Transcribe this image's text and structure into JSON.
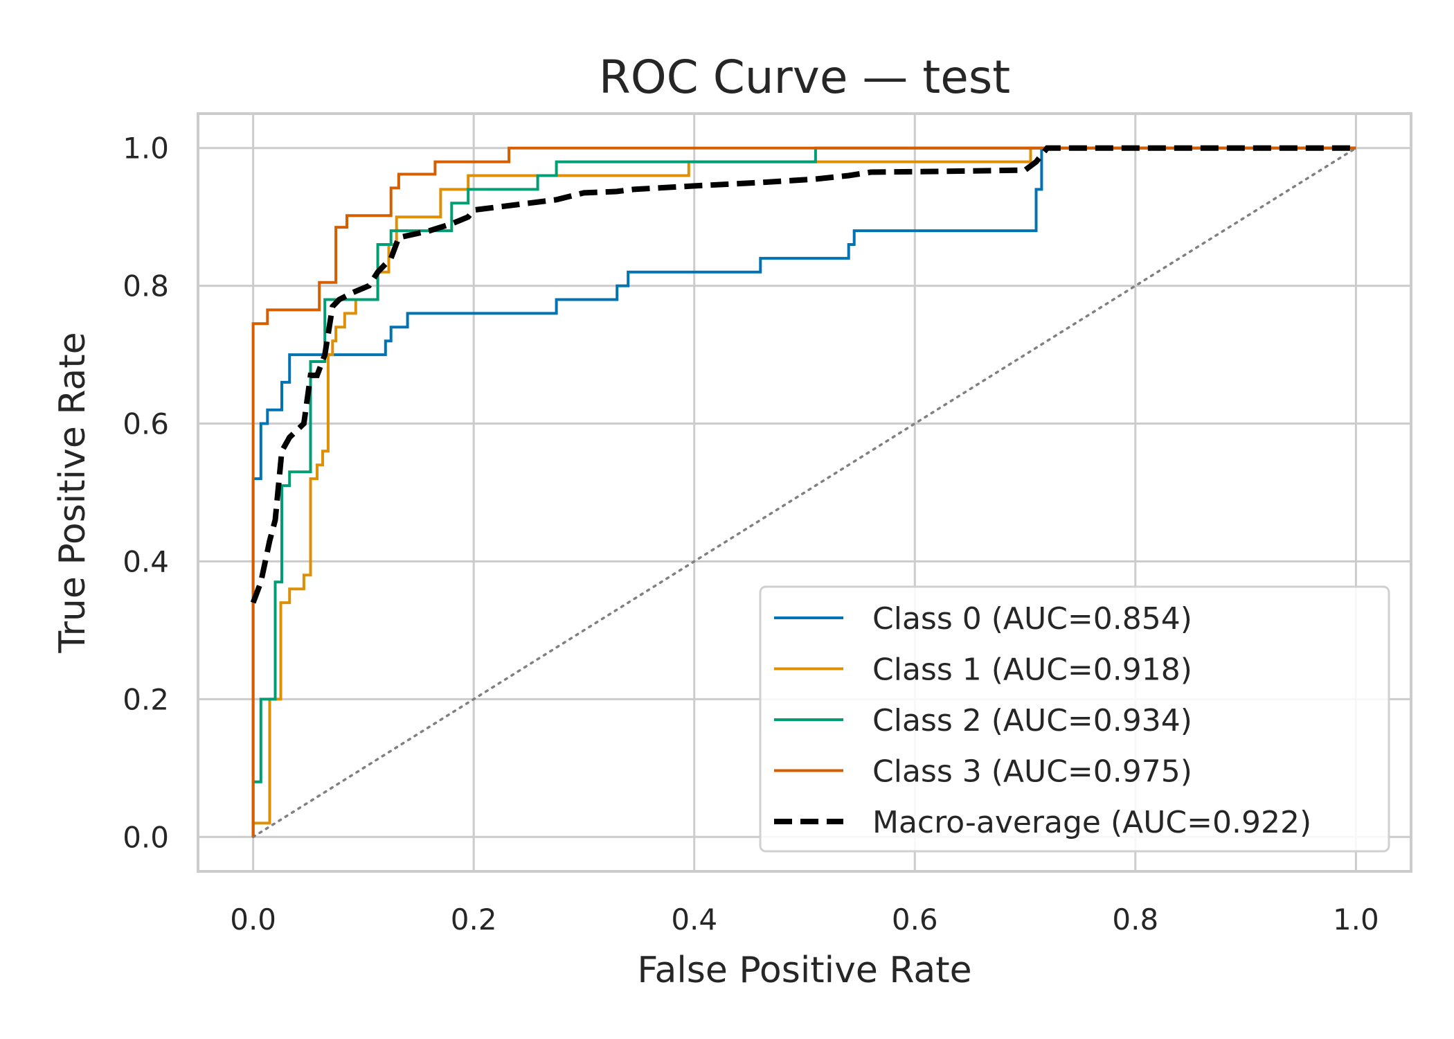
{
  "chart_data": {
    "type": "line",
    "title": "ROC Curve — test",
    "xlabel": "False Positive Rate",
    "ylabel": "True Positive Rate",
    "xlim": [
      -0.05,
      1.05
    ],
    "ylim": [
      -0.05,
      1.05
    ],
    "xticks": [
      0.0,
      0.2,
      0.4,
      0.6,
      0.8,
      1.0
    ],
    "xtick_labels": [
      "0.0",
      "0.2",
      "0.4",
      "0.6",
      "0.8",
      "1.0"
    ],
    "yticks": [
      0.0,
      0.2,
      0.4,
      0.6,
      0.8,
      1.0
    ],
    "ytick_labels": [
      "0.0",
      "0.2",
      "0.4",
      "0.6",
      "0.8",
      "1.0"
    ],
    "grid": true,
    "legend_position": "lower-right",
    "chance_line": {
      "x": [
        0,
        1
      ],
      "y": [
        0,
        1
      ],
      "color": "#808080",
      "style": "dotted"
    },
    "series": [
      {
        "name": "Class 0 (AUC=0.854)",
        "color": "#0173b2",
        "style": "solid",
        "x": [
          0.0,
          0.0,
          0.007,
          0.007,
          0.013,
          0.013,
          0.026,
          0.026,
          0.033,
          0.033,
          0.12,
          0.12,
          0.125,
          0.125,
          0.14,
          0.14,
          0.275,
          0.275,
          0.33,
          0.33,
          0.34,
          0.34,
          0.46,
          0.46,
          0.54,
          0.54,
          0.545,
          0.545,
          0.71,
          0.71,
          0.715,
          0.715,
          1.0
        ],
        "y": [
          0.0,
          0.52,
          0.52,
          0.6,
          0.6,
          0.62,
          0.62,
          0.66,
          0.66,
          0.7,
          0.7,
          0.72,
          0.72,
          0.74,
          0.74,
          0.76,
          0.76,
          0.78,
          0.78,
          0.8,
          0.8,
          0.82,
          0.82,
          0.84,
          0.84,
          0.86,
          0.86,
          0.88,
          0.88,
          0.94,
          0.94,
          1.0,
          1.0
        ]
      },
      {
        "name": "Class 1 (AUC=0.918)",
        "color": "#de8f05",
        "style": "solid",
        "x": [
          0.0,
          0.0,
          0.015,
          0.015,
          0.025,
          0.025,
          0.033,
          0.033,
          0.046,
          0.046,
          0.052,
          0.052,
          0.058,
          0.058,
          0.063,
          0.063,
          0.068,
          0.068,
          0.072,
          0.072,
          0.075,
          0.075,
          0.083,
          0.083,
          0.093,
          0.093,
          0.113,
          0.113,
          0.123,
          0.123,
          0.13,
          0.13,
          0.17,
          0.17,
          0.195,
          0.195,
          0.395,
          0.395,
          0.705,
          0.705,
          1.0
        ],
        "y": [
          0.0,
          0.02,
          0.02,
          0.2,
          0.2,
          0.34,
          0.34,
          0.36,
          0.36,
          0.38,
          0.38,
          0.52,
          0.52,
          0.54,
          0.54,
          0.56,
          0.56,
          0.7,
          0.7,
          0.72,
          0.72,
          0.74,
          0.74,
          0.76,
          0.76,
          0.78,
          0.78,
          0.82,
          0.82,
          0.86,
          0.86,
          0.9,
          0.9,
          0.94,
          0.94,
          0.96,
          0.96,
          0.98,
          0.98,
          1.0,
          1.0
        ]
      },
      {
        "name": "Class 2 (AUC=0.934)",
        "color": "#029e73",
        "style": "solid",
        "x": [
          0.0,
          0.0,
          0.007,
          0.007,
          0.02,
          0.02,
          0.026,
          0.026,
          0.033,
          0.033,
          0.052,
          0.052,
          0.065,
          0.065,
          0.075,
          0.075,
          0.113,
          0.113,
          0.125,
          0.125,
          0.18,
          0.18,
          0.195,
          0.195,
          0.258,
          0.258,
          0.275,
          0.275,
          0.51,
          0.51,
          1.0
        ],
        "y": [
          0.0,
          0.08,
          0.08,
          0.2,
          0.2,
          0.37,
          0.37,
          0.51,
          0.51,
          0.53,
          0.53,
          0.69,
          0.69,
          0.78,
          0.78,
          0.78,
          0.78,
          0.86,
          0.86,
          0.88,
          0.88,
          0.92,
          0.92,
          0.94,
          0.94,
          0.96,
          0.96,
          0.98,
          0.98,
          1.0,
          1.0
        ]
      },
      {
        "name": "Class 3 (AUC=0.975)",
        "color": "#d55e00",
        "style": "solid",
        "x": [
          0.0,
          0.0,
          0.013,
          0.013,
          0.06,
          0.06,
          0.075,
          0.075,
          0.085,
          0.085,
          0.125,
          0.125,
          0.132,
          0.132,
          0.165,
          0.165,
          0.195,
          0.195,
          0.232,
          0.232,
          1.0
        ],
        "y": [
          0.0,
          0.745,
          0.745,
          0.765,
          0.765,
          0.805,
          0.805,
          0.885,
          0.885,
          0.902,
          0.902,
          0.942,
          0.942,
          0.962,
          0.962,
          0.98,
          0.98,
          0.98,
          0.98,
          1.0,
          1.0
        ]
      },
      {
        "name": "Macro-average (AUC=0.922)",
        "color": "#000000",
        "style": "dashed",
        "x": [
          0.0,
          0.007,
          0.015,
          0.02,
          0.026,
          0.033,
          0.046,
          0.052,
          0.058,
          0.065,
          0.072,
          0.078,
          0.09,
          0.105,
          0.113,
          0.125,
          0.132,
          0.16,
          0.18,
          0.195,
          0.2,
          0.25,
          0.275,
          0.3,
          0.33,
          0.345,
          0.4,
          0.46,
          0.51,
          0.54,
          0.56,
          0.62,
          0.7,
          0.71,
          0.72,
          1.0
        ],
        "y": [
          0.34,
          0.37,
          0.43,
          0.46,
          0.56,
          0.58,
          0.6,
          0.67,
          0.67,
          0.7,
          0.77,
          0.78,
          0.79,
          0.8,
          0.82,
          0.84,
          0.87,
          0.88,
          0.89,
          0.9,
          0.91,
          0.92,
          0.925,
          0.935,
          0.937,
          0.94,
          0.945,
          0.95,
          0.955,
          0.96,
          0.965,
          0.966,
          0.968,
          0.98,
          1.0,
          1.0
        ]
      }
    ]
  }
}
